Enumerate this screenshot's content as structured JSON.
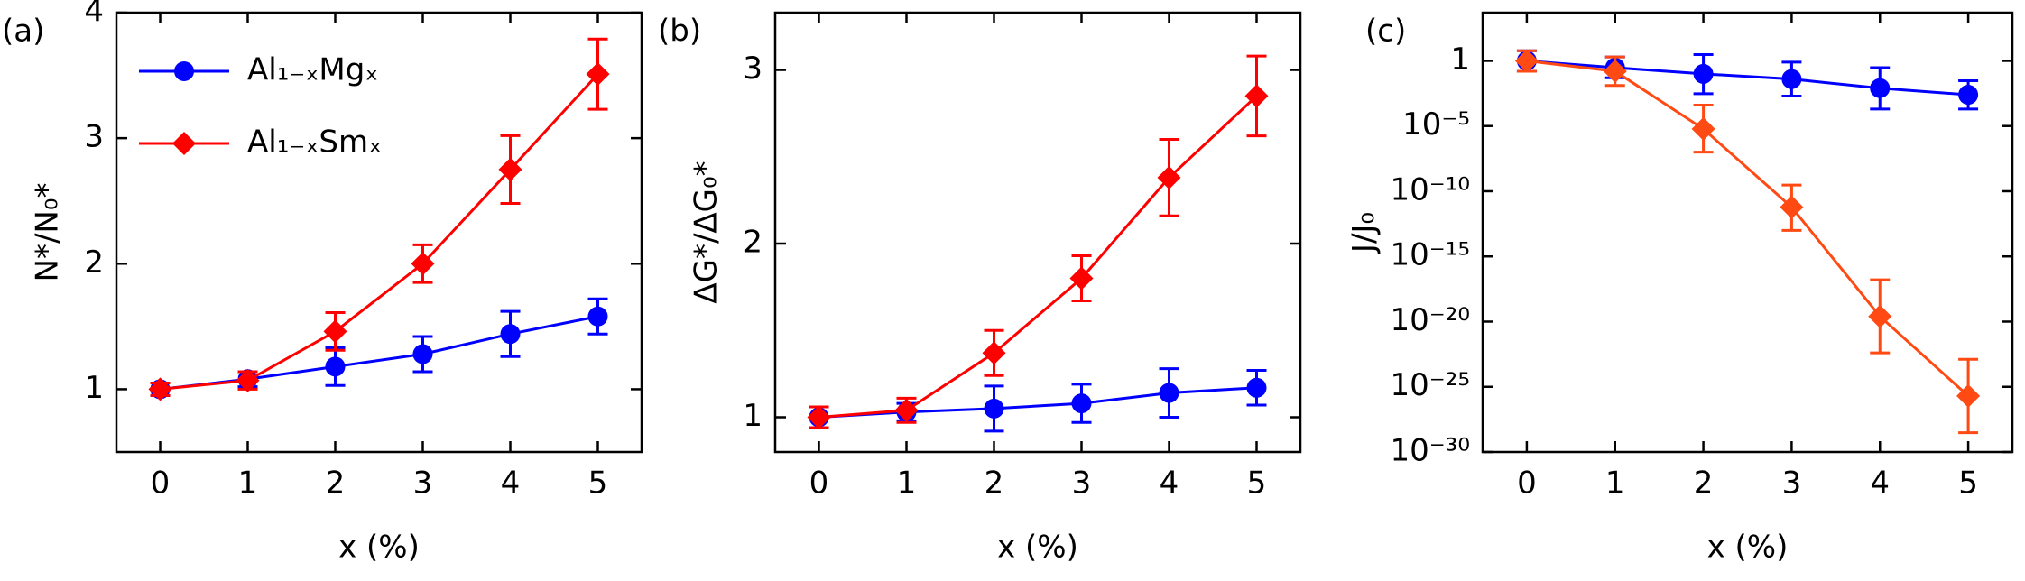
{
  "chart_data": [
    {
      "type": "line",
      "panel_label": "(a)",
      "x_label": "x (%)",
      "y_label": "N*/N₀*",
      "x": [
        0,
        1,
        2,
        3,
        4,
        5
      ],
      "xlim": [
        -0.5,
        5.5
      ],
      "xticks": [
        0,
        1,
        2,
        3,
        4,
        5
      ],
      "ylim": [
        0.5,
        4
      ],
      "yticks": [
        1,
        2,
        3,
        4
      ],
      "legend": "upper left",
      "series": [
        {
          "name": "Al₁₋ₓMgₓ",
          "color": "#0000ff",
          "marker": "circle",
          "values": [
            1.0,
            1.08,
            1.18,
            1.28,
            1.44,
            1.58
          ],
          "errors": [
            0.05,
            0.06,
            0.15,
            0.14,
            0.18,
            0.14
          ]
        },
        {
          "name": "Al₁₋ₓSmₓ",
          "color": "#ff0000",
          "marker": "diamond",
          "values": [
            1.0,
            1.07,
            1.46,
            2.0,
            2.75,
            3.51
          ],
          "errors": [
            0.05,
            0.07,
            0.15,
            0.15,
            0.27,
            0.28
          ]
        }
      ]
    },
    {
      "type": "line",
      "panel_label": "(b)",
      "x_label": "x (%)",
      "y_label": "ΔG*/ΔG₀*",
      "x": [
        0,
        1,
        2,
        3,
        4,
        5
      ],
      "xlim": [
        -0.5,
        5.5
      ],
      "xticks": [
        0,
        1,
        2,
        3,
        4,
        5
      ],
      "ylim": [
        0.8,
        3.33
      ],
      "yticks": [
        1,
        2,
        3
      ],
      "series": [
        {
          "color": "#0000ff",
          "marker": "circle",
          "values": [
            1.0,
            1.03,
            1.05,
            1.08,
            1.14,
            1.17
          ],
          "errors": [
            0.06,
            0.05,
            0.13,
            0.11,
            0.14,
            0.1
          ]
        },
        {
          "color": "#ff0000",
          "marker": "diamond",
          "values": [
            1.0,
            1.04,
            1.37,
            1.8,
            2.38,
            2.85
          ],
          "errors": [
            0.06,
            0.07,
            0.13,
            0.13,
            0.22,
            0.23
          ]
        }
      ]
    },
    {
      "type": "line",
      "panel_label": "(c)",
      "x_label": "x (%)",
      "y_label": "J/J₀",
      "log_scale": true,
      "x": [
        0,
        1,
        2,
        3,
        4,
        5
      ],
      "xlim": [
        -0.5,
        5.5
      ],
      "xticks": [
        0,
        1,
        2,
        3,
        4,
        5
      ],
      "ylim": [
        1e-30,
        5000
      ],
      "yticks": [
        1,
        {
          "value": 1e-05,
          "label": "10⁻⁵"
        },
        {
          "value": 1e-10,
          "label": "10⁻¹⁰"
        },
        {
          "value": 1e-15,
          "label": "10⁻¹⁵"
        },
        {
          "value": 1e-20,
          "label": "10⁻²⁰"
        },
        {
          "value": 1e-25,
          "label": "10⁻²⁵"
        },
        {
          "value": 1e-30,
          "label": "10⁻³⁰"
        }
      ],
      "series": [
        {
          "color": "#0000ff",
          "marker": "circle",
          "values": [
            1,
            0.3,
            0.1,
            0.04,
            0.008,
            0.0025
          ],
          "lower": [
            0.16,
            0.05,
            0.003,
            0.002,
            0.0002,
            0.0002
          ],
          "upper": [
            6,
            2,
            3,
            0.8,
            0.3,
            0.03
          ]
        },
        {
          "color": "#ff4a14",
          "marker": "diamond",
          "values": [
            1,
            0.16,
            6e-06,
            6e-12,
            2.5e-20,
            2e-26
          ],
          "lower": [
            0.16,
            0.013,
            1e-07,
            1e-13,
            4e-23,
            3e-29
          ],
          "upper": [
            6,
            2,
            0.0004,
            3e-10,
            1.6e-17,
            1.3e-23
          ]
        }
      ]
    }
  ]
}
